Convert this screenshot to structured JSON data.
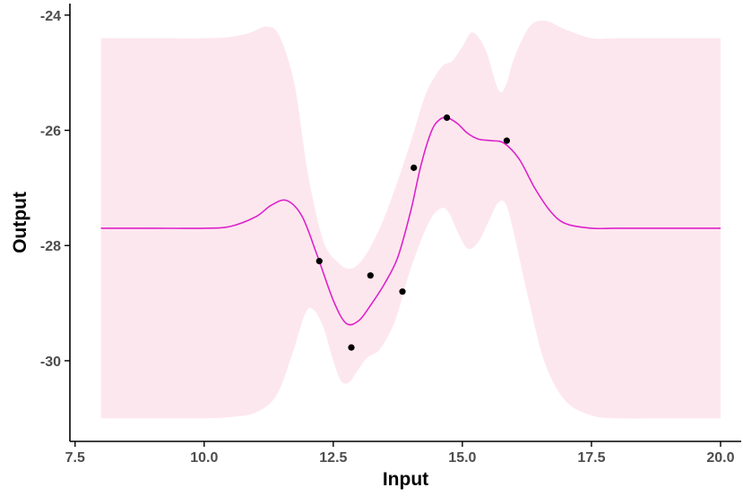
{
  "chart_data": {
    "type": "line",
    "xlabel": "Input",
    "ylabel": "Output",
    "xlim": [
      7.4,
      20.4
    ],
    "ylim": [
      -31.4,
      -23.8
    ],
    "x_ticks": [
      7.5,
      10.0,
      12.5,
      15.0,
      17.5,
      20.0
    ],
    "x_tick_labels": [
      "7.5",
      "10.0",
      "12.5",
      "15.0",
      "17.5",
      "20.0"
    ],
    "y_ticks": [
      -30,
      -28,
      -26,
      -24
    ],
    "y_tick_labels": [
      "-30",
      "-28",
      "-26",
      "-24"
    ],
    "grid": false,
    "colors": {
      "line": "#dd22cc",
      "band": "#fde7ee",
      "points": "#000000",
      "axis": "#000000",
      "tick_text": "#4d4d4d"
    },
    "observations": {
      "x": [
        12.23,
        12.85,
        13.22,
        13.84,
        14.06,
        14.7,
        15.86
      ],
      "y": [
        -28.27,
        -29.77,
        -28.52,
        -28.8,
        -26.65,
        -25.78,
        -26.18
      ]
    },
    "mean": {
      "x": [
        8.0,
        9.0,
        10.0,
        10.5,
        11.0,
        11.3,
        11.6,
        11.9,
        12.2,
        12.5,
        12.75,
        13.0,
        13.25,
        13.5,
        13.75,
        14.0,
        14.2,
        14.4,
        14.55,
        14.7,
        14.9,
        15.1,
        15.3,
        15.55,
        15.8,
        16.1,
        16.4,
        16.7,
        17.0,
        17.5,
        18.0,
        19.0,
        20.0
      ],
      "y": [
        -27.7,
        -27.7,
        -27.7,
        -27.67,
        -27.5,
        -27.3,
        -27.22,
        -27.5,
        -28.2,
        -28.95,
        -29.35,
        -29.3,
        -29.0,
        -28.65,
        -28.2,
        -27.4,
        -26.6,
        -26.02,
        -25.82,
        -25.78,
        -25.88,
        -26.05,
        -26.15,
        -26.18,
        -26.22,
        -26.5,
        -27.0,
        -27.4,
        -27.62,
        -27.7,
        -27.7,
        -27.7,
        -27.7
      ]
    },
    "band_upper": {
      "x": [
        8.0,
        9.0,
        10.0,
        10.5,
        10.9,
        11.2,
        11.45,
        11.75,
        12.0,
        12.3,
        12.6,
        12.85,
        13.1,
        13.4,
        13.7,
        14.0,
        14.3,
        14.6,
        14.8,
        15.0,
        15.2,
        15.45,
        15.7,
        15.85,
        16.0,
        16.3,
        16.6,
        17.0,
        17.5,
        18.0,
        19.0,
        20.0
      ],
      "y": [
        -24.4,
        -24.4,
        -24.4,
        -24.38,
        -24.3,
        -24.2,
        -24.35,
        -25.2,
        -26.7,
        -27.9,
        -28.3,
        -28.4,
        -28.2,
        -27.7,
        -27.0,
        -26.2,
        -25.35,
        -24.9,
        -24.8,
        -24.55,
        -24.3,
        -24.6,
        -25.3,
        -25.2,
        -24.75,
        -24.2,
        -24.1,
        -24.25,
        -24.4,
        -24.4,
        -24.4,
        -24.4
      ]
    },
    "band_lower": {
      "x": [
        8.0,
        9.0,
        10.0,
        10.5,
        11.0,
        11.4,
        11.7,
        11.95,
        12.1,
        12.3,
        12.5,
        12.65,
        12.8,
        12.95,
        13.15,
        13.4,
        13.7,
        14.0,
        14.35,
        14.6,
        14.75,
        14.9,
        15.1,
        15.3,
        15.5,
        15.7,
        15.85,
        16.0,
        16.3,
        16.6,
        17.0,
        17.5,
        18.0,
        19.0,
        20.0
      ],
      "y": [
        -31.0,
        -31.0,
        -31.0,
        -30.98,
        -30.9,
        -30.6,
        -29.9,
        -29.2,
        -29.1,
        -29.4,
        -30.0,
        -30.35,
        -30.38,
        -30.2,
        -29.95,
        -29.8,
        -29.3,
        -28.4,
        -27.6,
        -27.35,
        -27.45,
        -27.75,
        -28.05,
        -27.95,
        -27.6,
        -27.25,
        -27.3,
        -27.8,
        -29.0,
        -30.05,
        -30.7,
        -30.95,
        -31.0,
        -31.0,
        -31.0
      ]
    }
  }
}
